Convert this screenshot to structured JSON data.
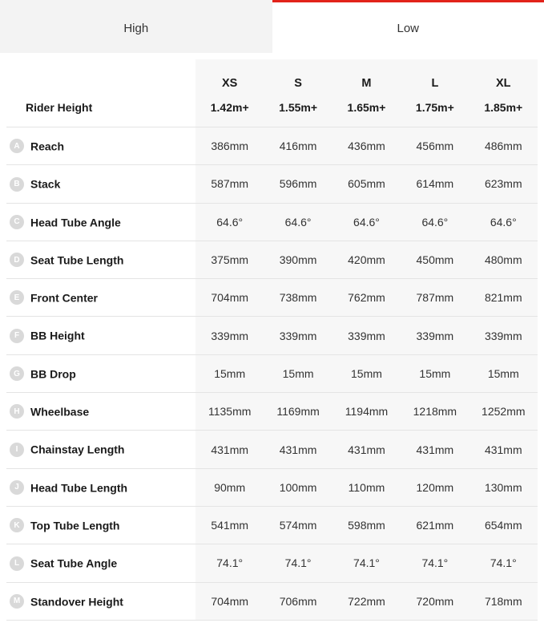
{
  "tabs": {
    "items": [
      {
        "label": "High",
        "active": false
      },
      {
        "label": "Low",
        "active": true
      }
    ],
    "active_border_color": "#e2231a",
    "inactive_bg": "#f3f3f3"
  },
  "table": {
    "header_label": "Rider Height",
    "sizes": [
      {
        "code": "XS",
        "height": "1.42m+"
      },
      {
        "code": "S",
        "height": "1.55m+"
      },
      {
        "code": "M",
        "height": "1.65m+"
      },
      {
        "code": "L",
        "height": "1.75m+"
      },
      {
        "code": "XL",
        "height": "1.85m+"
      }
    ],
    "rows": [
      {
        "letter": "A",
        "label": "Reach",
        "values": [
          "386mm",
          "416mm",
          "436mm",
          "456mm",
          "486mm"
        ]
      },
      {
        "letter": "B",
        "label": "Stack",
        "values": [
          "587mm",
          "596mm",
          "605mm",
          "614mm",
          "623mm"
        ]
      },
      {
        "letter": "C",
        "label": "Head Tube Angle",
        "values": [
          "64.6°",
          "64.6°",
          "64.6°",
          "64.6°",
          "64.6°"
        ]
      },
      {
        "letter": "D",
        "label": "Seat Tube Length",
        "values": [
          "375mm",
          "390mm",
          "420mm",
          "450mm",
          "480mm"
        ]
      },
      {
        "letter": "E",
        "label": "Front Center",
        "values": [
          "704mm",
          "738mm",
          "762mm",
          "787mm",
          "821mm"
        ]
      },
      {
        "letter": "F",
        "label": "BB Height",
        "values": [
          "339mm",
          "339mm",
          "339mm",
          "339mm",
          "339mm"
        ]
      },
      {
        "letter": "G",
        "label": "BB Drop",
        "values": [
          "15mm",
          "15mm",
          "15mm",
          "15mm",
          "15mm"
        ]
      },
      {
        "letter": "H",
        "label": "Wheelbase",
        "values": [
          "1135mm",
          "1169mm",
          "1194mm",
          "1218mm",
          "1252mm"
        ]
      },
      {
        "letter": "I",
        "label": "Chainstay Length",
        "values": [
          "431mm",
          "431mm",
          "431mm",
          "431mm",
          "431mm"
        ]
      },
      {
        "letter": "J",
        "label": "Head Tube Length",
        "values": [
          "90mm",
          "100mm",
          "110mm",
          "120mm",
          "130mm"
        ]
      },
      {
        "letter": "K",
        "label": "Top Tube Length",
        "values": [
          "541mm",
          "574mm",
          "598mm",
          "621mm",
          "654mm"
        ]
      },
      {
        "letter": "L",
        "label": "Seat Tube Angle",
        "values": [
          "74.1°",
          "74.1°",
          "74.1°",
          "74.1°",
          "74.1°"
        ]
      },
      {
        "letter": "M",
        "label": "Standover Height",
        "values": [
          "704mm",
          "706mm",
          "722mm",
          "720mm",
          "718mm"
        ]
      }
    ],
    "colors": {
      "row_border": "#e4e4e4",
      "value_bg": "#f7f7f7",
      "badge_bg": "#d9d9d9",
      "badge_fg": "#ffffff",
      "text": "#1a1a1a"
    },
    "fonts": {
      "header_size_pt": 14,
      "body_size_pt": 14,
      "weight_bold": 700
    }
  }
}
